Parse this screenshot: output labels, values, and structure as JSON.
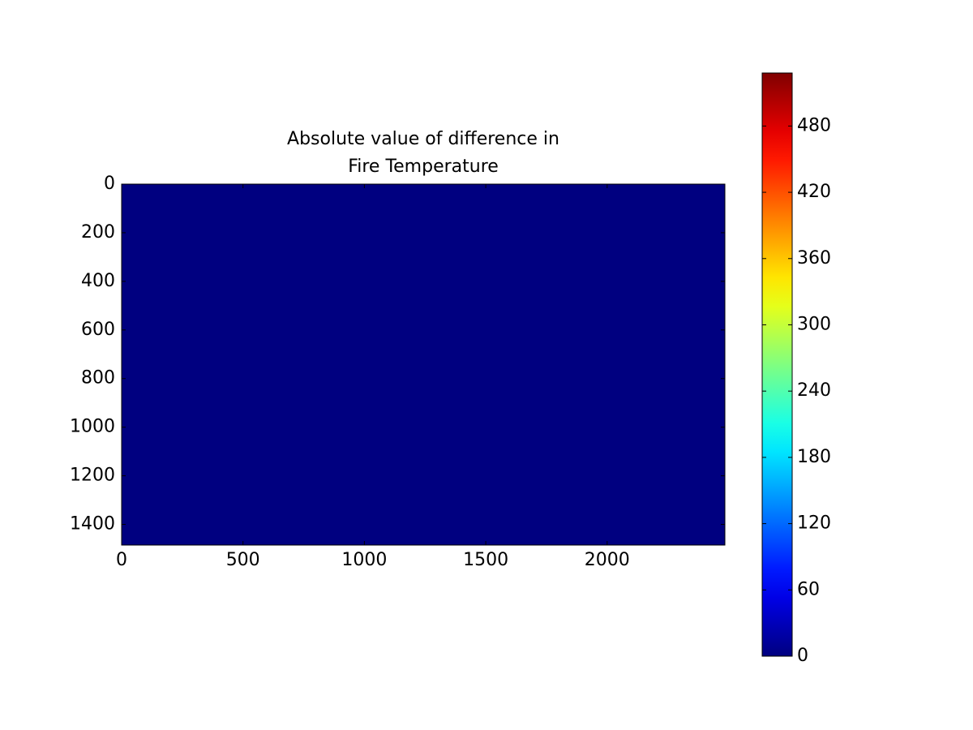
{
  "chart_data": {
    "type": "heatmap",
    "title": "Absolute value of difference in\nFire Temperature",
    "values": [
      [
        0
      ]
    ],
    "colormap": "jet",
    "xlim": [
      0,
      2485
    ],
    "xticks": [
      0,
      500,
      1000,
      1500,
      2000
    ],
    "ylim": [
      1485,
      0
    ],
    "yticks": [
      0,
      200,
      400,
      600,
      800,
      1000,
      1200,
      1400
    ],
    "clim": [
      0,
      528
    ],
    "cbticks": [
      0,
      60,
      120,
      180,
      240,
      300,
      360,
      420,
      480
    ]
  }
}
